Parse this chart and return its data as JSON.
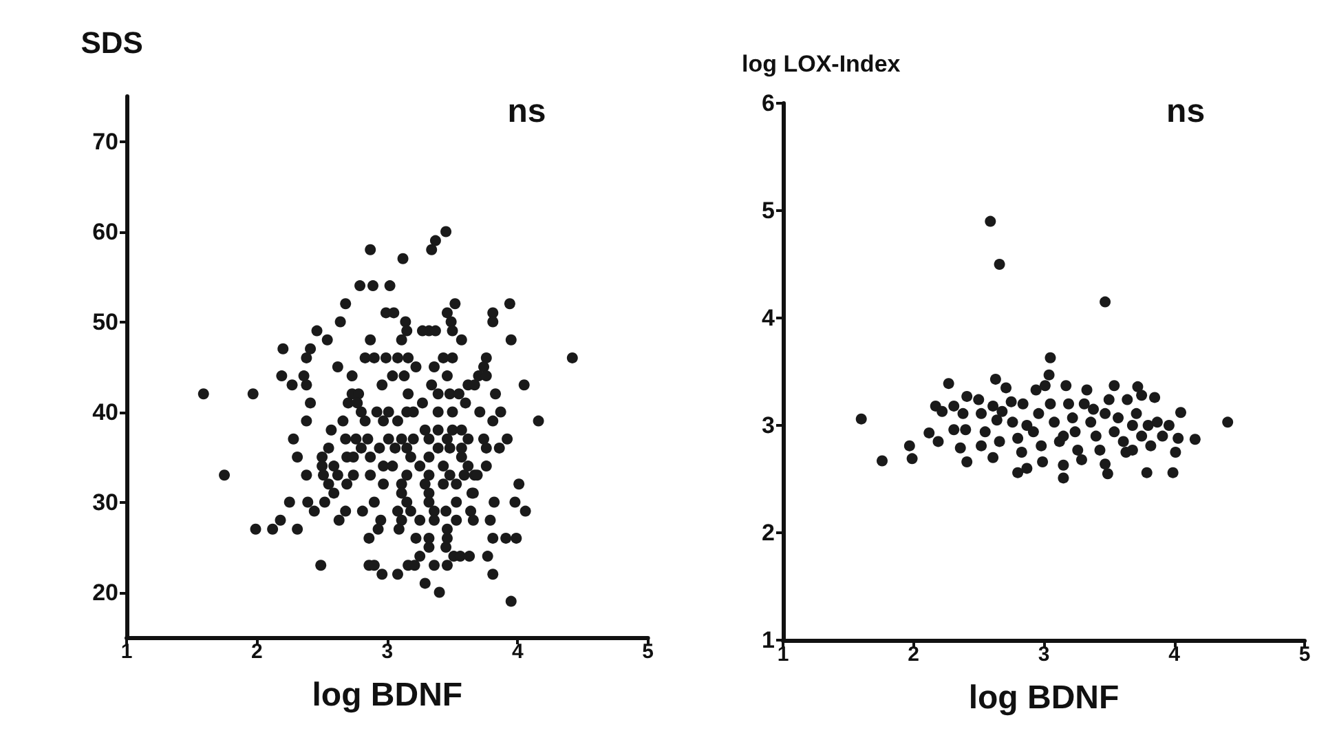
{
  "chart_data": [
    {
      "type": "scatter",
      "ylabel": "SDS",
      "xlabel": "log BDNF",
      "annotations": [
        "ns"
      ],
      "xlim": [
        1,
        5
      ],
      "xticks": [
        1,
        2,
        3,
        4,
        5
      ],
      "ylim": [
        15,
        75
      ],
      "yticks": [
        20,
        30,
        40,
        50,
        60,
        70
      ],
      "grid": false,
      "marker": "circle",
      "series": [
        {
          "color": "#1a1a1a",
          "x": [
            1.59,
            1.97,
            1.75,
            1.99,
            2.12,
            2.18,
            2.31,
            2.25,
            2.49,
            2.87,
            3.12,
            3.34,
            3.37,
            3.45,
            2.79,
            2.89,
            3.02,
            2.68,
            2.64,
            2.46,
            2.54,
            2.2,
            2.41,
            2.38,
            2.19,
            2.36,
            2.27,
            2.38,
            2.41,
            2.38,
            2.28,
            2.31,
            2.38,
            2.39,
            2.44,
            2.63,
            2.68,
            2.86,
            2.95,
            2.93,
            2.86,
            2.9,
            2.96,
            3.08,
            3.16,
            3.21,
            3.29,
            3.4,
            3.36,
            3.46,
            3.25,
            3.32,
            3.45,
            3.51,
            3.56,
            3.63,
            3.77,
            3.81,
            3.95,
            3.81,
            3.91,
            3.99,
            3.79,
            3.82,
            3.98,
            4.06,
            4.01,
            4.16,
            4.05,
            4.42,
            3.95,
            3.94,
            3.81,
            3.81,
            3.76,
            3.74,
            3.83,
            3.87,
            3.81,
            3.92,
            3.86,
            3.76,
            3.67,
            3.65,
            3.52,
            3.46,
            3.49,
            3.57,
            3.5,
            3.32,
            3.37,
            3.27,
            3.14,
            3.15,
            3.11,
            2.99,
            3.05,
            2.87,
            2.83,
            2.9,
            2.99,
            3.08,
            3.16,
            2.62,
            2.73,
            2.96,
            3.04,
            3.13,
            3.22,
            3.36,
            3.43,
            3.5,
            3.46,
            3.34,
            3.39,
            3.48,
            3.55,
            3.62,
            3.67,
            3.7,
            3.76,
            2.73,
            2.78,
            2.7,
            2.77,
            3.16,
            3.27,
            2.8,
            2.92,
            3.01,
            3.15,
            3.2,
            3.39,
            3.5,
            3.6,
            3.71,
            2.66,
            2.83,
            2.97,
            3.08,
            3.29,
            3.39,
            3.5,
            3.57,
            2.57,
            2.68,
            2.76,
            2.85,
            3.01,
            3.11,
            3.2,
            3.32,
            3.46,
            3.62,
            3.74,
            2.55,
            2.69,
            2.8,
            2.94,
            3.06,
            3.15,
            3.39,
            3.48,
            3.57,
            3.76,
            2.5,
            2.74,
            2.87,
            2.97,
            3.18,
            3.32,
            3.57,
            2.5,
            2.59,
            3.04,
            3.25,
            3.43,
            3.62,
            2.51,
            2.62,
            2.74,
            2.87,
            3.15,
            3.32,
            3.48,
            3.59,
            3.69,
            2.55,
            2.69,
            2.97,
            3.11,
            3.29,
            3.43,
            3.53,
            2.59,
            3.11,
            3.32,
            3.66,
            2.52,
            2.9,
            3.15,
            3.32,
            3.53,
            2.81,
            3.08,
            3.18,
            3.36,
            3.45,
            3.64,
            3.11,
            3.25,
            3.36,
            3.53,
            3.66,
            3.09,
            3.46,
            3.22,
            3.32,
            3.46
          ],
          "values": [
            42,
            42,
            33,
            27,
            27,
            28,
            27,
            30,
            23,
            58,
            57,
            58,
            59,
            60,
            54,
            54,
            54,
            52,
            50,
            49,
            48,
            47,
            47,
            46,
            44,
            44,
            43,
            43,
            41,
            39,
            37,
            35,
            33,
            30,
            29,
            28,
            29,
            26,
            28,
            27,
            23,
            23,
            22,
            22,
            23,
            23,
            21,
            20,
            23,
            23,
            24,
            25,
            25,
            24,
            24,
            24,
            24,
            22,
            19,
            26,
            26,
            26,
            28,
            30,
            30,
            29,
            32,
            39,
            43,
            46,
            48,
            52,
            51,
            50,
            46,
            45,
            42,
            40,
            39,
            37,
            36,
            34,
            33,
            31,
            52,
            51,
            50,
            48,
            49,
            49,
            49,
            49,
            50,
            49,
            48,
            51,
            51,
            48,
            46,
            46,
            46,
            46,
            46,
            45,
            44,
            43,
            44,
            44,
            45,
            45,
            46,
            46,
            44,
            43,
            42,
            42,
            42,
            43,
            43,
            44,
            44,
            42,
            42,
            41,
            41,
            42,
            41,
            40,
            40,
            40,
            40,
            40,
            40,
            40,
            41,
            40,
            39,
            39,
            39,
            39,
            38,
            38,
            38,
            38,
            38,
            37,
            37,
            37,
            37,
            37,
            37,
            37,
            37,
            37,
            37,
            36,
            35,
            36,
            36,
            36,
            36,
            36,
            36,
            36,
            36,
            35,
            35,
            35,
            34,
            35,
            35,
            35,
            34,
            34,
            34,
            34,
            34,
            34,
            33,
            33,
            33,
            33,
            33,
            33,
            33,
            33,
            33,
            32,
            32,
            32,
            32,
            32,
            32,
            32,
            31,
            31,
            31,
            31,
            30,
            30,
            30,
            30,
            30,
            29,
            29,
            29,
            29,
            29,
            29,
            28,
            28,
            28,
            28,
            28,
            27,
            27,
            26,
            26,
            26
          ]
        }
      ]
    },
    {
      "type": "scatter",
      "ylabel": "log LOX-Index",
      "xlabel": "log BDNF",
      "annotations": [
        "ns"
      ],
      "xlim": [
        1,
        5
      ],
      "xticks": [
        1,
        2,
        3,
        4,
        5
      ],
      "ylim": [
        1,
        6
      ],
      "yticks": [
        1,
        2,
        3,
        4,
        5,
        6
      ],
      "grid": false,
      "marker": "circle",
      "series": [
        {
          "color": "#1a1a1a",
          "x": [
            2.59,
            2.66,
            3.47,
            1.6,
            1.76,
            1.97,
            1.99,
            2.12,
            2.19,
            2.27,
            2.41,
            4.41,
            4.16,
            4.05,
            3.99,
            3.79,
            3.05,
            3.04,
            2.63,
            2.71,
            3.15,
            3.15,
            2.8,
            2.87,
            3.49,
            3.54,
            3.72,
            3.85,
            3.75,
            2.17,
            2.22,
            2.31,
            2.38,
            2.31,
            2.4,
            2.36,
            2.41,
            2.5,
            2.52,
            2.55,
            2.52,
            2.61,
            2.64,
            2.66,
            2.61,
            2.75,
            2.76,
            2.8,
            2.83,
            2.84,
            2.94,
            2.96,
            2.92,
            2.98,
            2.99,
            3.01,
            3.05,
            3.08,
            3.12,
            3.17,
            3.19,
            3.22,
            3.24,
            3.26,
            3.31,
            3.33,
            3.36,
            3.4,
            3.43,
            3.47,
            3.5,
            3.54,
            3.57,
            3.61,
            3.63,
            3.68,
            3.71,
            3.75,
            3.8,
            3.82,
            3.87,
            3.91,
            3.96,
            4.01,
            4.03,
            3.29,
            3.47,
            3.68,
            3.15,
            2.87,
            2.68,
            3.38,
            3.64
          ],
          "values": [
            4.9,
            4.5,
            4.15,
            3.06,
            2.67,
            2.81,
            2.69,
            2.93,
            2.85,
            3.39,
            3.27,
            3.03,
            2.87,
            3.12,
            2.56,
            2.56,
            3.63,
            3.47,
            3.43,
            3.35,
            2.63,
            2.51,
            2.56,
            2.6,
            2.55,
            3.37,
            3.36,
            3.26,
            3.28,
            3.18,
            3.13,
            3.18,
            3.11,
            2.96,
            2.96,
            2.79,
            2.66,
            3.24,
            3.11,
            2.94,
            2.81,
            3.18,
            3.05,
            2.85,
            2.7,
            3.22,
            3.03,
            2.88,
            2.75,
            3.2,
            3.33,
            3.11,
            2.94,
            2.81,
            2.66,
            3.37,
            3.2,
            3.03,
            2.85,
            3.37,
            3.2,
            3.07,
            2.94,
            2.77,
            3.2,
            3.33,
            3.03,
            2.9,
            2.77,
            3.11,
            3.24,
            2.94,
            3.07,
            2.85,
            2.75,
            3.0,
            3.11,
            2.9,
            3.0,
            2.81,
            3.03,
            2.9,
            3.0,
            2.75,
            2.88,
            2.68,
            2.64,
            2.77,
            2.9,
            3.0,
            3.13,
            3.15,
            3.24
          ]
        }
      ]
    }
  ]
}
